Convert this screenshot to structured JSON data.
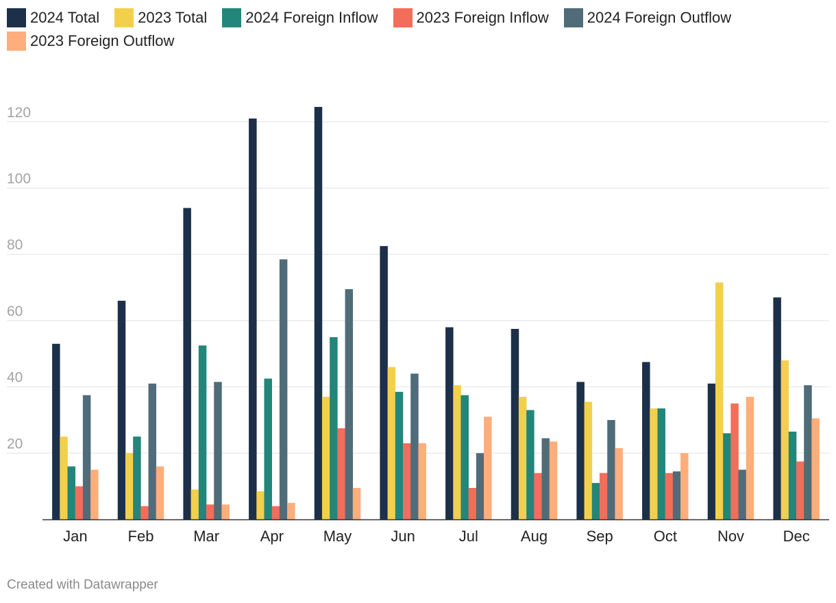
{
  "chart_data": {
    "type": "bar",
    "categories": [
      "Jan",
      "Feb",
      "Mar",
      "Apr",
      "May",
      "Jun",
      "Jul",
      "Aug",
      "Sep",
      "Oct",
      "Nov",
      "Dec"
    ],
    "series": [
      {
        "name": "2024 Total",
        "color": "#1d3049",
        "values": [
          53,
          66,
          94,
          121,
          124.5,
          82.5,
          58,
          57.5,
          41.5,
          47.5,
          41,
          67
        ]
      },
      {
        "name": "2023 Total",
        "color": "#f2d04b",
        "values": [
          25,
          20,
          9,
          8.5,
          37,
          46,
          40.5,
          37,
          35.5,
          33.5,
          71.5,
          48
        ]
      },
      {
        "name": "2024 Foreign Inflow",
        "color": "#23867a",
        "values": [
          16,
          25,
          52.5,
          42.5,
          55,
          38.5,
          37.5,
          33,
          11,
          33.5,
          26,
          26.5
        ]
      },
      {
        "name": "2023 Foreign Inflow",
        "color": "#f36d5a",
        "values": [
          10,
          4,
          4.5,
          4,
          27.5,
          23,
          9.5,
          14,
          14,
          14,
          35,
          17.5
        ]
      },
      {
        "name": "2024 Foreign Outflow",
        "color": "#506c79",
        "values": [
          37.5,
          41,
          41.5,
          78.5,
          69.5,
          44,
          20,
          24.5,
          30,
          14.5,
          15,
          40.5
        ]
      },
      {
        "name": "2023 Foreign Outflow",
        "color": "#fdae7b",
        "values": [
          15,
          16,
          4.5,
          5,
          9.5,
          23,
          31,
          23.5,
          21.5,
          20,
          37,
          30.5
        ]
      }
    ],
    "y_ticks": [
      "20",
      "40",
      "60",
      "80",
      "100",
      "120"
    ],
    "ylim": [
      0,
      129
    ],
    "grid": true,
    "legend": "top-left"
  },
  "footer": {
    "credit": "Created with Datawrapper"
  }
}
